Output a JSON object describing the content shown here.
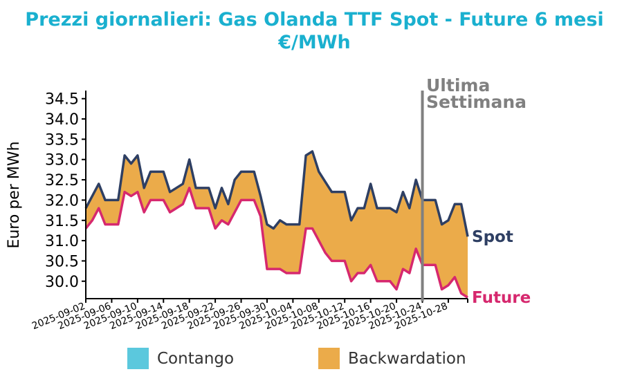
{
  "chart_data": {
    "type": "area",
    "title": "Prezzi giornalieri: Gas Olanda TTF Spot - Future 6 mesi",
    "subtitle": "€/MWh",
    "ylabel": "Euro per MWh",
    "xlabel": "",
    "ylim": [
      29.57,
      34.7
    ],
    "yticks": [
      "30.0",
      "30.5",
      "31.0",
      "31.5",
      "32.0",
      "32.5",
      "33.0",
      "33.5",
      "34.0",
      "34.5"
    ],
    "start_date": "2025-09-02",
    "xticks": [
      "2025-09-02",
      "2025-09-06",
      "2025-09-10",
      "2025-09-14",
      "2025-09-18",
      "2025-09-22",
      "2025-09-26",
      "2025-09-30",
      "2025-10-04",
      "2025-10-08",
      "2025-10-12",
      "2025-10-16",
      "2025-10-20",
      "2025-10-24",
      "2025-10-28"
    ],
    "marker": {
      "date_index": 52,
      "label_line1": "Ultima",
      "label_line2": "Settimana"
    },
    "series": [
      {
        "name": "Spot",
        "color": "#2e3f63",
        "values": [
          31.8,
          32.1,
          32.4,
          32.0,
          32.0,
          32.0,
          33.1,
          32.9,
          33.1,
          32.3,
          32.7,
          32.7,
          32.7,
          32.2,
          32.3,
          32.4,
          33.0,
          32.3,
          32.3,
          32.3,
          31.8,
          32.3,
          31.9,
          32.5,
          32.7,
          32.7,
          32.7,
          32.1,
          31.4,
          31.3,
          31.5,
          31.4,
          31.4,
          31.4,
          33.1,
          33.2,
          32.7,
          32.45,
          32.2,
          32.2,
          32.2,
          31.5,
          31.8,
          31.8,
          32.4,
          31.8,
          31.8,
          31.8,
          31.7,
          32.2,
          31.8,
          32.5,
          32.0,
          32.0,
          32.0,
          31.4,
          31.5,
          31.9,
          31.9,
          31.1
        ]
      },
      {
        "name": "Future",
        "color": "#d6286e",
        "values": [
          31.3,
          31.5,
          31.8,
          31.4,
          31.4,
          31.4,
          32.2,
          32.1,
          32.2,
          31.7,
          32.0,
          32.0,
          32.0,
          31.7,
          31.8,
          31.9,
          32.3,
          31.8,
          31.8,
          31.8,
          31.3,
          31.5,
          31.4,
          31.7,
          32.0,
          32.0,
          32.0,
          31.6,
          30.3,
          30.3,
          30.3,
          30.2,
          30.2,
          30.2,
          31.3,
          31.3,
          31.0,
          30.7,
          30.5,
          30.5,
          30.5,
          30.0,
          30.2,
          30.2,
          30.4,
          30.0,
          30.0,
          30.0,
          29.8,
          30.3,
          30.2,
          30.8,
          30.4,
          30.4,
          30.4,
          29.8,
          29.9,
          30.1,
          29.7,
          29.6
        ]
      }
    ],
    "legend": [
      {
        "label": "Contango",
        "color": "#5bc8dd"
      },
      {
        "label": "Backwardation",
        "color": "#ebab4a"
      }
    ],
    "legend_position": "bottom"
  }
}
